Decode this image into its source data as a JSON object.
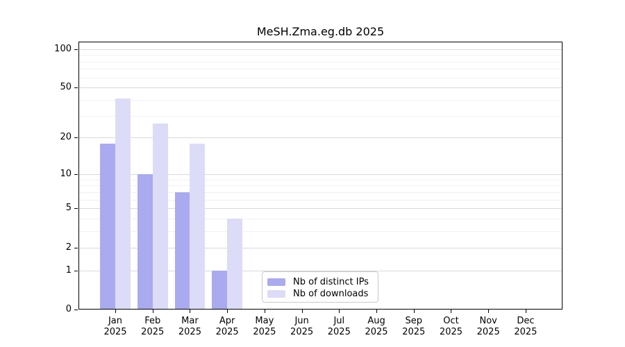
{
  "title": "MeSH.Zma.eg.db 2025",
  "chart_data": {
    "type": "bar",
    "title": "MeSH.Zma.eg.db 2025",
    "y_scale": "log1p",
    "ylim": [
      0,
      100
    ],
    "y_ticks": [
      0,
      1,
      2,
      5,
      10,
      20,
      50,
      100
    ],
    "y_minor_grid": [
      3,
      4,
      6,
      7,
      8,
      9,
      30,
      40,
      60,
      70,
      80,
      90
    ],
    "grid": true,
    "months": [
      "Jan",
      "Feb",
      "Mar",
      "Apr",
      "May",
      "Jun",
      "Jul",
      "Aug",
      "Sep",
      "Oct",
      "Nov",
      "Dec"
    ],
    "year": "2025",
    "series": [
      {
        "name": "Nb of distinct IPs",
        "color": "#aaaaf0",
        "values": [
          18,
          10,
          7,
          1,
          0,
          0,
          0,
          0,
          0,
          0,
          0,
          0
        ]
      },
      {
        "name": "Nb of downloads",
        "color": "#dcdcf8",
        "values": [
          41,
          26,
          18,
          4,
          0,
          0,
          0,
          0,
          0,
          0,
          0,
          0
        ]
      }
    ],
    "legend": {
      "position": "bottom-center",
      "entries": [
        "Nb of distinct IPs",
        "Nb of downloads"
      ]
    }
  }
}
